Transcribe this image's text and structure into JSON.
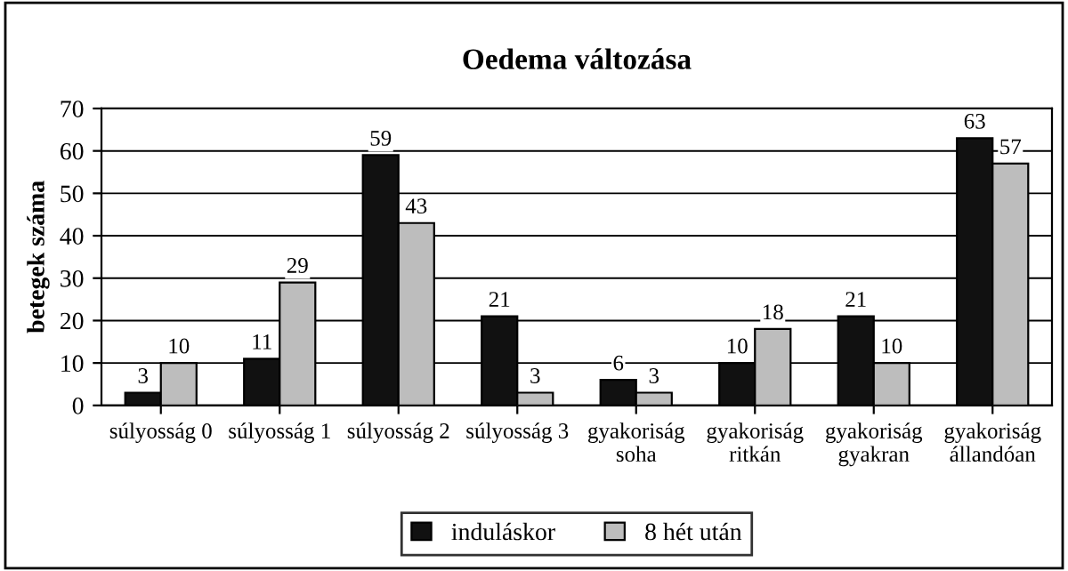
{
  "chart_data": {
    "type": "bar",
    "title": "Oedema változása",
    "ylabel": "betegek száma",
    "categories": [
      "súlyosság 0",
      "súlyosság 1",
      "súlyosság 2",
      "súlyosság 3",
      "gyakoriság\nsoha",
      "gyakoriság\nritkán",
      "gyakoriság\ngyakran",
      "gyakoriság\nállandóan"
    ],
    "series": [
      {
        "name": "induláskor",
        "color": "#111111",
        "values": [
          3,
          11,
          59,
          21,
          6,
          10,
          21,
          63
        ]
      },
      {
        "name": "8 hét után",
        "color": "#bdbdbd",
        "values": [
          10,
          29,
          43,
          3,
          3,
          18,
          10,
          57
        ]
      }
    ],
    "ylim": [
      0,
      70
    ],
    "yticks": [
      0,
      10,
      20,
      30,
      40,
      50,
      60,
      70
    ],
    "grid": "y",
    "legend": "bottom",
    "data_labels": true
  }
}
